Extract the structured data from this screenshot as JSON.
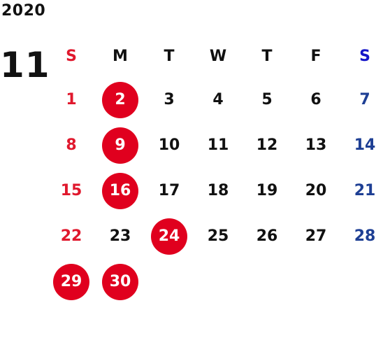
{
  "year": "2020",
  "month": "11",
  "weekdays": [
    "S",
    "M",
    "T",
    "W",
    "T",
    "F",
    "S"
  ],
  "weeks": [
    [
      {
        "day": "1",
        "holiday": false
      },
      {
        "day": "2",
        "holiday": true
      },
      {
        "day": "3",
        "holiday": false
      },
      {
        "day": "4",
        "holiday": false
      },
      {
        "day": "5",
        "holiday": false
      },
      {
        "day": "6",
        "holiday": false
      },
      {
        "day": "7",
        "holiday": false
      }
    ],
    [
      {
        "day": "8",
        "holiday": false
      },
      {
        "day": "9",
        "holiday": true
      },
      {
        "day": "10",
        "holiday": false
      },
      {
        "day": "11",
        "holiday": false
      },
      {
        "day": "12",
        "holiday": false
      },
      {
        "day": "13",
        "holiday": false
      },
      {
        "day": "14",
        "holiday": false
      }
    ],
    [
      {
        "day": "15",
        "holiday": false
      },
      {
        "day": "16",
        "holiday": true
      },
      {
        "day": "17",
        "holiday": false
      },
      {
        "day": "18",
        "holiday": false
      },
      {
        "day": "19",
        "holiday": false
      },
      {
        "day": "20",
        "holiday": false
      },
      {
        "day": "21",
        "holiday": false
      }
    ],
    [
      {
        "day": "22",
        "holiday": false
      },
      {
        "day": "23",
        "holiday": false
      },
      {
        "day": "24",
        "holiday": true
      },
      {
        "day": "25",
        "holiday": false
      },
      {
        "day": "26",
        "holiday": false
      },
      {
        "day": "27",
        "holiday": false
      },
      {
        "day": "28",
        "holiday": false
      }
    ],
    [
      {
        "day": "29",
        "holiday": true
      },
      {
        "day": "30",
        "holiday": true
      }
    ]
  ],
  "colors": {
    "sunday": "#e0182d",
    "saturday": "#1e3f94",
    "saturday_header": "#1515c8",
    "holiday_circle": "#e0001e",
    "text": "#111111"
  }
}
